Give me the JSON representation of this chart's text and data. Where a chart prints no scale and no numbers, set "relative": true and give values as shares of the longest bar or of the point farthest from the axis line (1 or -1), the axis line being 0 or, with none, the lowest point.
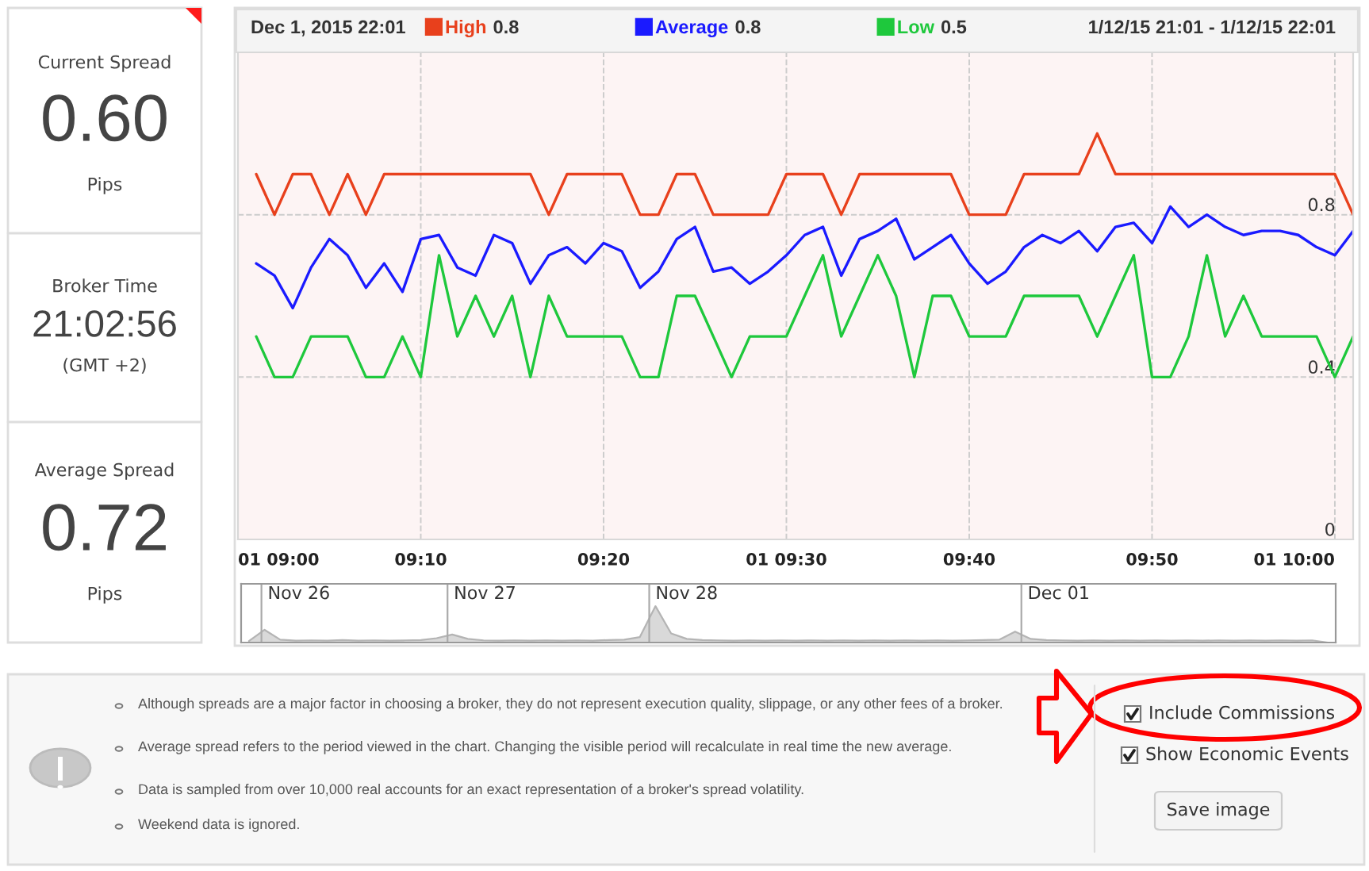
{
  "chart_data": [
    {
      "type": "line",
      "title": "Dec 1, 2015 22:01",
      "subtitle": "1/12/15 21:01 - 1/12/15 22:01",
      "x": [
        "2015-12-01T09:01",
        "2015-12-01T09:02",
        "2015-12-01T09:03",
        "2015-12-01T09:04",
        "2015-12-01T09:05",
        "2015-12-01T09:06",
        "2015-12-01T09:07",
        "2015-12-01T09:08",
        "2015-12-01T09:09",
        "2015-12-01T09:10",
        "2015-12-01T09:11",
        "2015-12-01T09:12",
        "2015-12-01T09:13",
        "2015-12-01T09:14",
        "2015-12-01T09:15",
        "2015-12-01T09:16",
        "2015-12-01T09:17",
        "2015-12-01T09:18",
        "2015-12-01T09:19",
        "2015-12-01T09:20",
        "2015-12-01T09:21",
        "2015-12-01T09:22",
        "2015-12-01T09:23",
        "2015-12-01T09:24",
        "2015-12-01T09:25",
        "2015-12-01T09:26",
        "2015-12-01T09:27",
        "2015-12-01T09:28",
        "2015-12-01T09:29",
        "2015-12-01T09:30",
        "2015-12-01T09:31",
        "2015-12-01T09:32",
        "2015-12-01T09:33",
        "2015-12-01T09:34",
        "2015-12-01T09:35",
        "2015-12-01T09:36",
        "2015-12-01T09:37",
        "2015-12-01T09:38",
        "2015-12-01T09:39",
        "2015-12-01T09:40",
        "2015-12-01T09:41",
        "2015-12-01T09:42",
        "2015-12-01T09:43",
        "2015-12-01T09:44",
        "2015-12-01T09:45",
        "2015-12-01T09:46",
        "2015-12-01T09:47",
        "2015-12-01T09:48",
        "2015-12-01T09:49",
        "2015-12-01T09:50",
        "2015-12-01T09:51",
        "2015-12-01T09:52",
        "2015-12-01T09:53",
        "2015-12-01T09:54",
        "2015-12-01T09:55",
        "2015-12-01T09:56",
        "2015-12-01T09:57",
        "2015-12-01T09:58",
        "2015-12-01T09:59",
        "2015-12-01T10:00",
        "2015-12-01T10:01"
      ],
      "series": [
        {
          "name": "High",
          "color": "#e8401c",
          "values": [
            0.9,
            0.8,
            0.9,
            0.9,
            0.8,
            0.9,
            0.8,
            0.9,
            0.9,
            0.9,
            0.9,
            0.9,
            0.9,
            0.9,
            0.9,
            0.9,
            0.8,
            0.9,
            0.9,
            0.9,
            0.9,
            0.8,
            0.8,
            0.9,
            0.9,
            0.8,
            0.8,
            0.8,
            0.8,
            0.9,
            0.9,
            0.9,
            0.8,
            0.9,
            0.9,
            0.9,
            0.9,
            0.9,
            0.9,
            0.8,
            0.8,
            0.8,
            0.9,
            0.9,
            0.9,
            0.9,
            1.0,
            0.9,
            0.9,
            0.9,
            0.9,
            0.9,
            0.9,
            0.9,
            0.9,
            0.9,
            0.9,
            0.9,
            0.9,
            0.9,
            0.8
          ]
        },
        {
          "name": "Average",
          "color": "#1a1aff",
          "values": [
            0.68,
            0.65,
            0.57,
            0.67,
            0.74,
            0.7,
            0.62,
            0.68,
            0.61,
            0.74,
            0.75,
            0.67,
            0.65,
            0.75,
            0.73,
            0.63,
            0.7,
            0.72,
            0.68,
            0.73,
            0.71,
            0.62,
            0.66,
            0.74,
            0.77,
            0.66,
            0.67,
            0.63,
            0.66,
            0.7,
            0.75,
            0.77,
            0.65,
            0.74,
            0.76,
            0.79,
            0.69,
            0.72,
            0.75,
            0.68,
            0.63,
            0.66,
            0.72,
            0.75,
            0.73,
            0.76,
            0.71,
            0.77,
            0.78,
            0.73,
            0.82,
            0.77,
            0.8,
            0.77,
            0.75,
            0.76,
            0.76,
            0.75,
            0.72,
            0.7,
            0.76
          ]
        },
        {
          "name": "Low",
          "color": "#1ec83c",
          "values": [
            0.5,
            0.4,
            0.4,
            0.5,
            0.5,
            0.5,
            0.4,
            0.4,
            0.5,
            0.4,
            0.7,
            0.5,
            0.6,
            0.5,
            0.6,
            0.4,
            0.6,
            0.5,
            0.5,
            0.5,
            0.5,
            0.4,
            0.4,
            0.6,
            0.6,
            0.5,
            0.4,
            0.5,
            0.5,
            0.5,
            0.6,
            0.7,
            0.5,
            0.6,
            0.7,
            0.6,
            0.4,
            0.6,
            0.6,
            0.5,
            0.5,
            0.5,
            0.6,
            0.6,
            0.6,
            0.6,
            0.5,
            0.6,
            0.7,
            0.4,
            0.4,
            0.5,
            0.7,
            0.5,
            0.6,
            0.5,
            0.5,
            0.5,
            0.5,
            0.4,
            0.5
          ]
        }
      ],
      "annotations": [
        "0.8",
        "0.8",
        "0.5"
      ],
      "xlim": [
        "2015-12-01T09:00",
        "2015-12-01T10:01"
      ],
      "xticks": [
        {
          "value": "2015-12-01T09:00",
          "label": "01 09:00"
        },
        {
          "value": "2015-12-01T09:10",
          "label": "09:10"
        },
        {
          "value": "2015-12-01T09:20",
          "label": "09:20"
        },
        {
          "value": "2015-12-01T09:30",
          "label": "01 09:30"
        },
        {
          "value": "2015-12-01T09:40",
          "label": "09:40"
        },
        {
          "value": "2015-12-01T09:50",
          "label": "09:50"
        },
        {
          "value": "2015-12-01T10:00",
          "label": "01 10:00"
        }
      ],
      "ylim": [
        0,
        1.2
      ],
      "yticks": [
        0,
        0.4,
        0.8
      ],
      "grid": true,
      "legend": "top",
      "line_style": "solid",
      "marker": "none"
    },
    {
      "type": "area",
      "relative": true,
      "color": "#b4b4b4",
      "categories": [
        null,
        null,
        null,
        null,
        null,
        null,
        null,
        null,
        null,
        null,
        null,
        null,
        null,
        null,
        null,
        null,
        null,
        null,
        null,
        null,
        null,
        null,
        null,
        null,
        null,
        null,
        null,
        null,
        null,
        null,
        null,
        null,
        null,
        null,
        null,
        null,
        null,
        null,
        null,
        null,
        null,
        null,
        null,
        null,
        null,
        null,
        null,
        null,
        null,
        null,
        null,
        null,
        null,
        null,
        null,
        null,
        null,
        null,
        null,
        null,
        null,
        null,
        null,
        null,
        null,
        null,
        null,
        null,
        null,
        null
      ],
      "values": [
        0.04,
        0.35,
        0.08,
        0.05,
        0.06,
        0.05,
        0.07,
        0.05,
        0.06,
        0.05,
        0.06,
        0.07,
        0.12,
        0.22,
        0.1,
        0.06,
        0.05,
        0.06,
        0.05,
        0.06,
        0.05,
        0.06,
        0.05,
        0.07,
        0.08,
        0.15,
        1.0,
        0.25,
        0.1,
        0.07,
        0.06,
        0.05,
        0.06,
        0.05,
        0.06,
        0.05,
        0.06,
        0.05,
        0.06,
        0.05,
        0.06,
        0.05,
        0.06,
        0.05,
        0.06,
        0.05,
        0.06,
        0.07,
        0.08,
        0.3,
        0.1,
        0.07,
        0.06,
        0.05,
        0.06,
        0.05,
        0.06,
        0.05,
        0.06,
        0.05,
        0.06,
        0.05,
        0.06,
        0.05,
        0.06,
        0.05,
        0.06,
        0.05,
        0.06,
        0.0
      ],
      "annotations": [
        "Nov 26",
        "Nov 27",
        "Nov 28",
        "Dec 01"
      ]
    },
    {
      "type": "other",
      "annotations": [
        "Current Spread",
        "0.60",
        "Pips",
        "Broker Time",
        "21:02:56",
        "(GMT +2)",
        "Average Spread",
        "0.72",
        "Pips",
        "Although spreads are a major factor in choosing a broker, they do not represent execution quality, slippage, or any other fees of a broker.",
        "Average spread refers to the period viewed in the chart. Changing the visible period will recalculate in real time the new average.",
        "Data is sampled from over 10,000 real accounts for an exact representation of a broker's spread volatility.",
        "Weekend data is ignored.",
        "Include Commissions",
        "Show Economic Events",
        "Save image"
      ]
    }
  ]
}
